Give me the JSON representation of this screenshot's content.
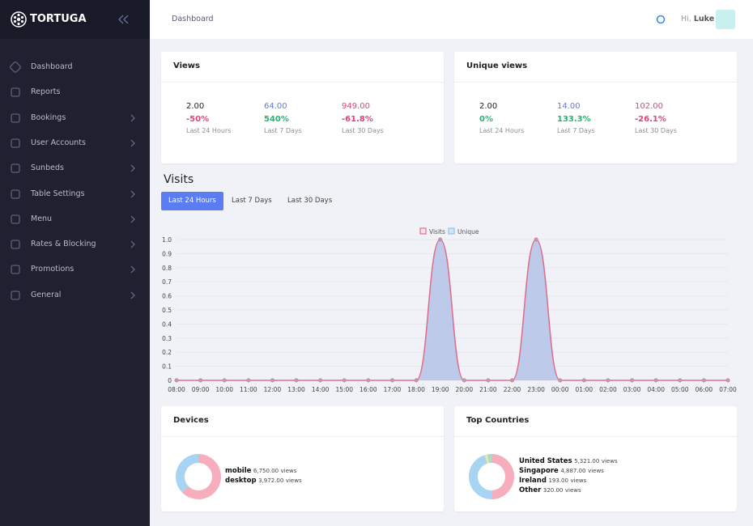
{
  "sidebar": {
    "brand": "TORTUGA",
    "menu": [
      "Dashboard",
      "Reports",
      "Bookings",
      "User Accounts",
      "Sunbeds",
      "Table Settings",
      "Menu",
      "Rates & Blocking",
      "Promotions",
      "General"
    ]
  },
  "header": {
    "breadcrumb": "Dashboard",
    "greeting": "Hi,",
    "user": "Luke"
  },
  "views": {
    "title": "Views",
    "stats": [
      {
        "value": "2.00",
        "change": "-50%",
        "period": "Last 24 Hours"
      },
      {
        "value": "64.00",
        "change": "540%",
        "period": "Last 7 Days"
      },
      {
        "value": "949.00",
        "change": "-61.8%",
        "period": "Last 30 Days"
      }
    ]
  },
  "unique_views": {
    "title": "Unique views",
    "stats": [
      {
        "value": "2.00",
        "change": "0%",
        "period": "Last 24 Hours"
      },
      {
        "value": "14.00",
        "change": "133.3%",
        "period": "Last 7 Days"
      },
      {
        "value": "102.00",
        "change": "-26.1%",
        "period": "Last 30 Days"
      }
    ]
  },
  "visits": {
    "title": "Visits",
    "tabs": [
      "Last 24 Hours",
      "Last 7 Days",
      "Last 30 Days"
    ],
    "active_tab": 0,
    "chart": {
      "type": "line",
      "categories": [
        "08:00",
        "09:00",
        "10:00",
        "11:00",
        "12:00",
        "13:00",
        "14:00",
        "15:00",
        "16:00",
        "17:00",
        "18:00",
        "19:00",
        "20:00",
        "21:00",
        "22:00",
        "23:00",
        "00:00",
        "01:00",
        "02:00",
        "03:00",
        "04:00",
        "05:00",
        "06:00",
        "07:00"
      ],
      "series": [
        {
          "name": "Visits",
          "color": "#e0708f",
          "values": [
            0,
            0,
            0,
            0,
            0,
            0,
            0,
            0,
            0,
            0,
            0,
            1,
            0,
            0,
            0,
            1,
            0,
            0,
            0,
            0,
            0,
            0,
            0,
            0
          ]
        },
        {
          "name": "Unique",
          "color": "#8ec5ea",
          "values": [
            0,
            0,
            0,
            0,
            0,
            0,
            0,
            0,
            0,
            0,
            0,
            1,
            0,
            0,
            0,
            1,
            0,
            0,
            0,
            0,
            0,
            0,
            0,
            0
          ]
        }
      ],
      "ylim": [
        0,
        1
      ],
      "yticks": [
        0,
        0.1,
        0.2,
        0.3,
        0.4,
        0.5,
        0.6,
        0.7,
        0.8,
        0.9,
        {
          "value": 1,
          "label": "1.0"
        }
      ],
      "grid": true,
      "legend": "top"
    }
  },
  "devices": {
    "title": "Devices",
    "chart": {
      "type": "doughnut",
      "categories": [
        "mobile",
        "desktop"
      ],
      "values": [
        6750,
        3972
      ],
      "value_labels": [
        "6,750.00",
        "3,972.00"
      ],
      "unit": "views",
      "colors": [
        "#f6aebd",
        "#a6d4f2"
      ]
    }
  },
  "countries": {
    "title": "Top Countries",
    "chart": {
      "type": "doughnut",
      "categories": [
        "United States",
        "Singapore",
        "Ireland",
        "Other"
      ],
      "values": [
        5321,
        4887,
        193,
        320
      ],
      "value_labels": [
        "5,321.00",
        "4,887.00",
        "193.00",
        "320.00"
      ],
      "unit": "views",
      "colors": [
        "#f6aebd",
        "#a6d4f2",
        "#f7e2a0",
        "#a8dcc9"
      ]
    }
  }
}
